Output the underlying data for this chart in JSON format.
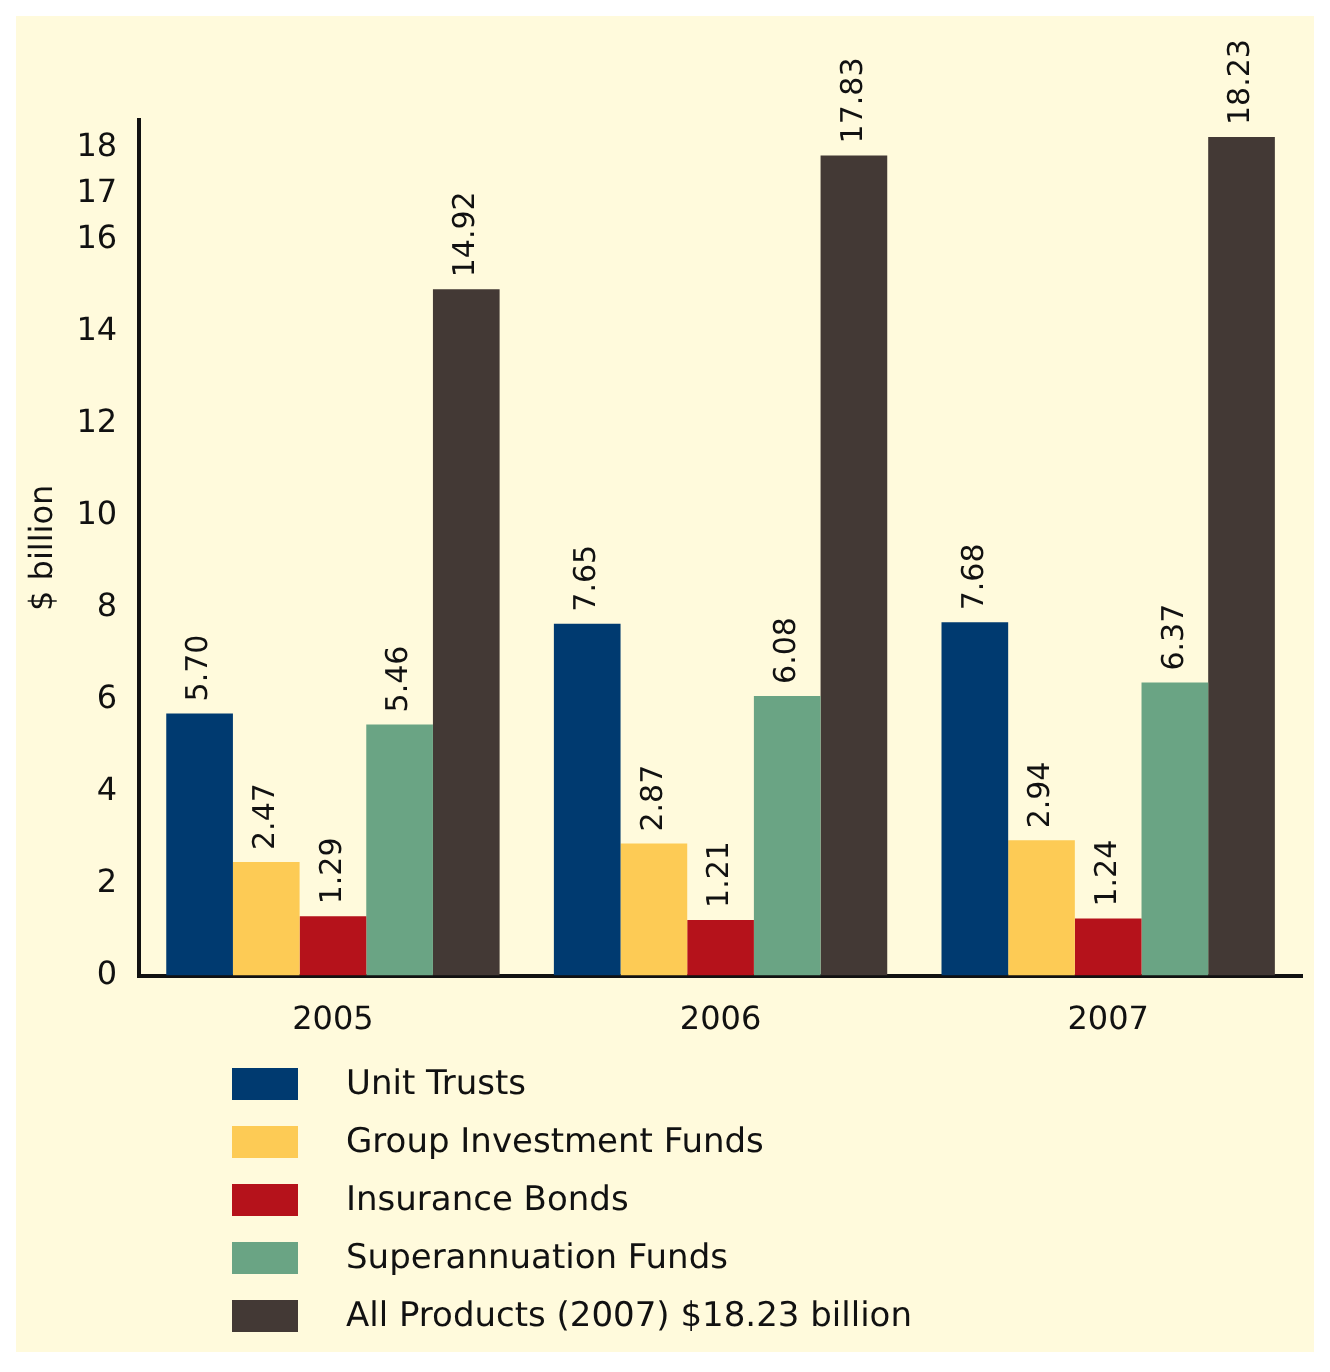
{
  "chart_data": {
    "type": "bar",
    "ylabel": "$ billion",
    "categories": [
      "2005",
      "2006",
      "2007"
    ],
    "series": [
      {
        "name": "Unit Trusts",
        "color": "#003a70",
        "values": [
          5.7,
          7.65,
          7.68
        ],
        "value_labels": [
          "5.70",
          "7.65",
          "7.68"
        ]
      },
      {
        "name": "Group Investment Funds",
        "color": "#fdcb55",
        "values": [
          2.47,
          2.87,
          2.94
        ],
        "value_labels": [
          "2.47",
          "2.87",
          "2.94"
        ]
      },
      {
        "name": "Insurance Bonds",
        "color": "#b5121b",
        "values": [
          1.29,
          1.21,
          1.24
        ],
        "value_labels": [
          "1.29",
          "1.21",
          "1.24"
        ]
      },
      {
        "name": "Superannuation Funds",
        "color": "#6aa484",
        "values": [
          5.46,
          6.08,
          6.37
        ],
        "value_labels": [
          "5.46",
          "6.08",
          "6.37"
        ]
      },
      {
        "name": "All Products (2007) $18.23 billion",
        "color": "#433935",
        "values": [
          14.92,
          17.83,
          18.23
        ],
        "value_labels": [
          "14.92",
          "17.83",
          "18.23"
        ]
      }
    ],
    "ylim": [
      0,
      18.6
    ],
    "yticks": [
      0,
      2,
      4,
      6,
      8,
      10,
      12,
      14,
      16,
      17,
      18
    ],
    "grid": false,
    "legend": "bottom"
  }
}
